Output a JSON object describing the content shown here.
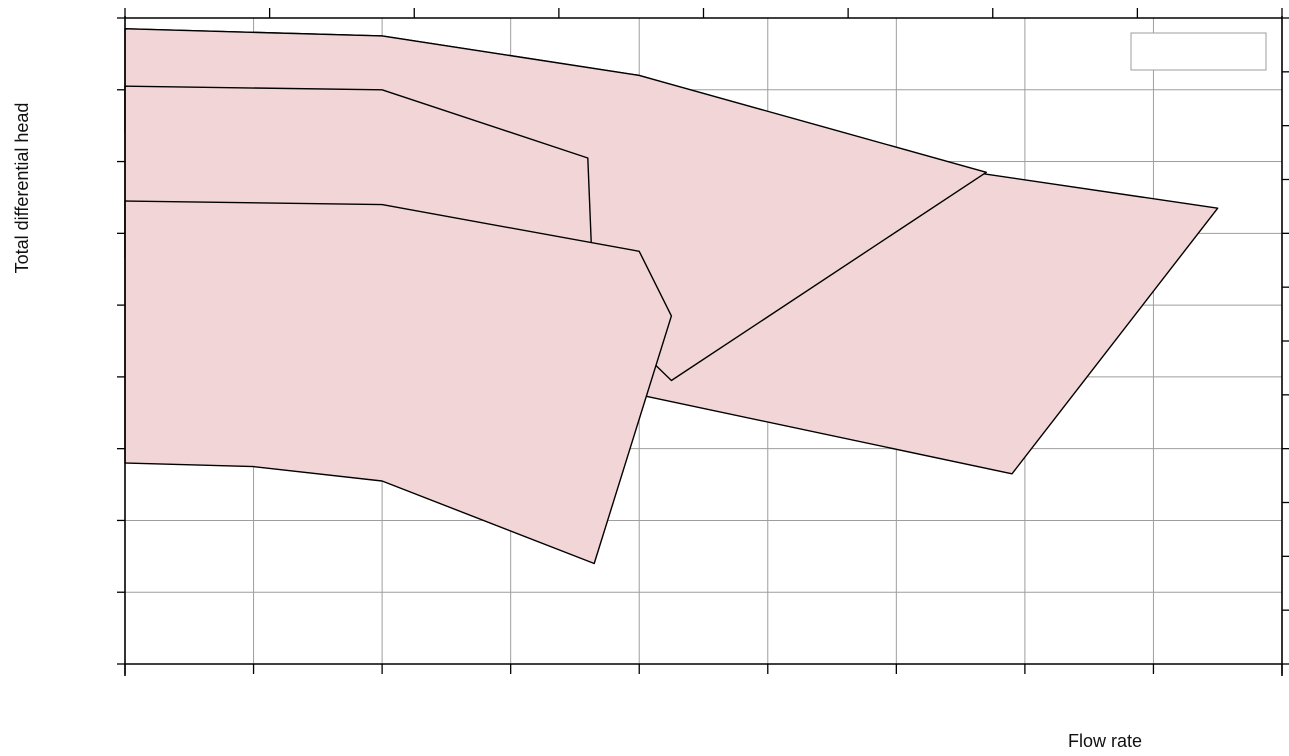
{
  "chart_data": {
    "type": "area",
    "title": "",
    "xlabel": "Flow rate",
    "ylabel": "Total differential head",
    "xlim": [
      0,
      9
    ],
    "ylim": [
      0,
      9
    ],
    "grid": true,
    "legend": "top-right",
    "legend_entries": [],
    "fill_color": "#f2d5d7",
    "stroke_color": "#000000",
    "grid_color": "#9e9e9e",
    "series": [
      {
        "top": [
          [
            0,
            8.85
          ],
          [
            2,
            8.75
          ],
          [
            4,
            8.2
          ],
          [
            6.6,
            6.85
          ],
          [
            8.5,
            6.35
          ]
        ],
        "bottom": [
          [
            0,
            4.05
          ],
          [
            2,
            3.95
          ],
          [
            4,
            3.75
          ],
          [
            6.9,
            2.65
          ]
        ],
        "bottom_outer": [
          [
            4,
            3.75
          ],
          [
            6.9,
            2.65
          ],
          [
            8.5,
            6.35
          ]
        ]
      },
      {
        "top": [
          [
            0,
            8.85
          ],
          [
            2,
            8.75
          ],
          [
            4,
            8.2
          ],
          [
            6.7,
            6.85
          ]
        ],
        "bottom": [
          [
            0,
            7.4
          ],
          [
            2,
            7.05
          ],
          [
            3.3,
            5.6
          ],
          [
            4.25,
            3.95
          ],
          [
            6.7,
            6.85
          ]
        ]
      },
      {
        "top": [
          [
            0,
            8.05
          ],
          [
            2,
            8.0
          ],
          [
            3.6,
            7.05
          ]
        ],
        "bottom": [
          [
            0,
            5.65
          ],
          [
            2,
            5.55
          ],
          [
            3.3,
            5.6
          ],
          [
            3.65,
            4.85
          ],
          [
            3.6,
            7.05
          ]
        ]
      },
      {
        "top": [
          [
            0,
            6.45
          ],
          [
            2,
            6.4
          ],
          [
            4,
            5.75
          ],
          [
            4.25,
            4.85
          ]
        ],
        "bottom": [
          [
            0,
            2.8
          ],
          [
            1,
            2.75
          ],
          [
            2,
            2.55
          ],
          [
            3.65,
            1.4
          ],
          [
            4.25,
            4.85
          ]
        ]
      }
    ]
  }
}
